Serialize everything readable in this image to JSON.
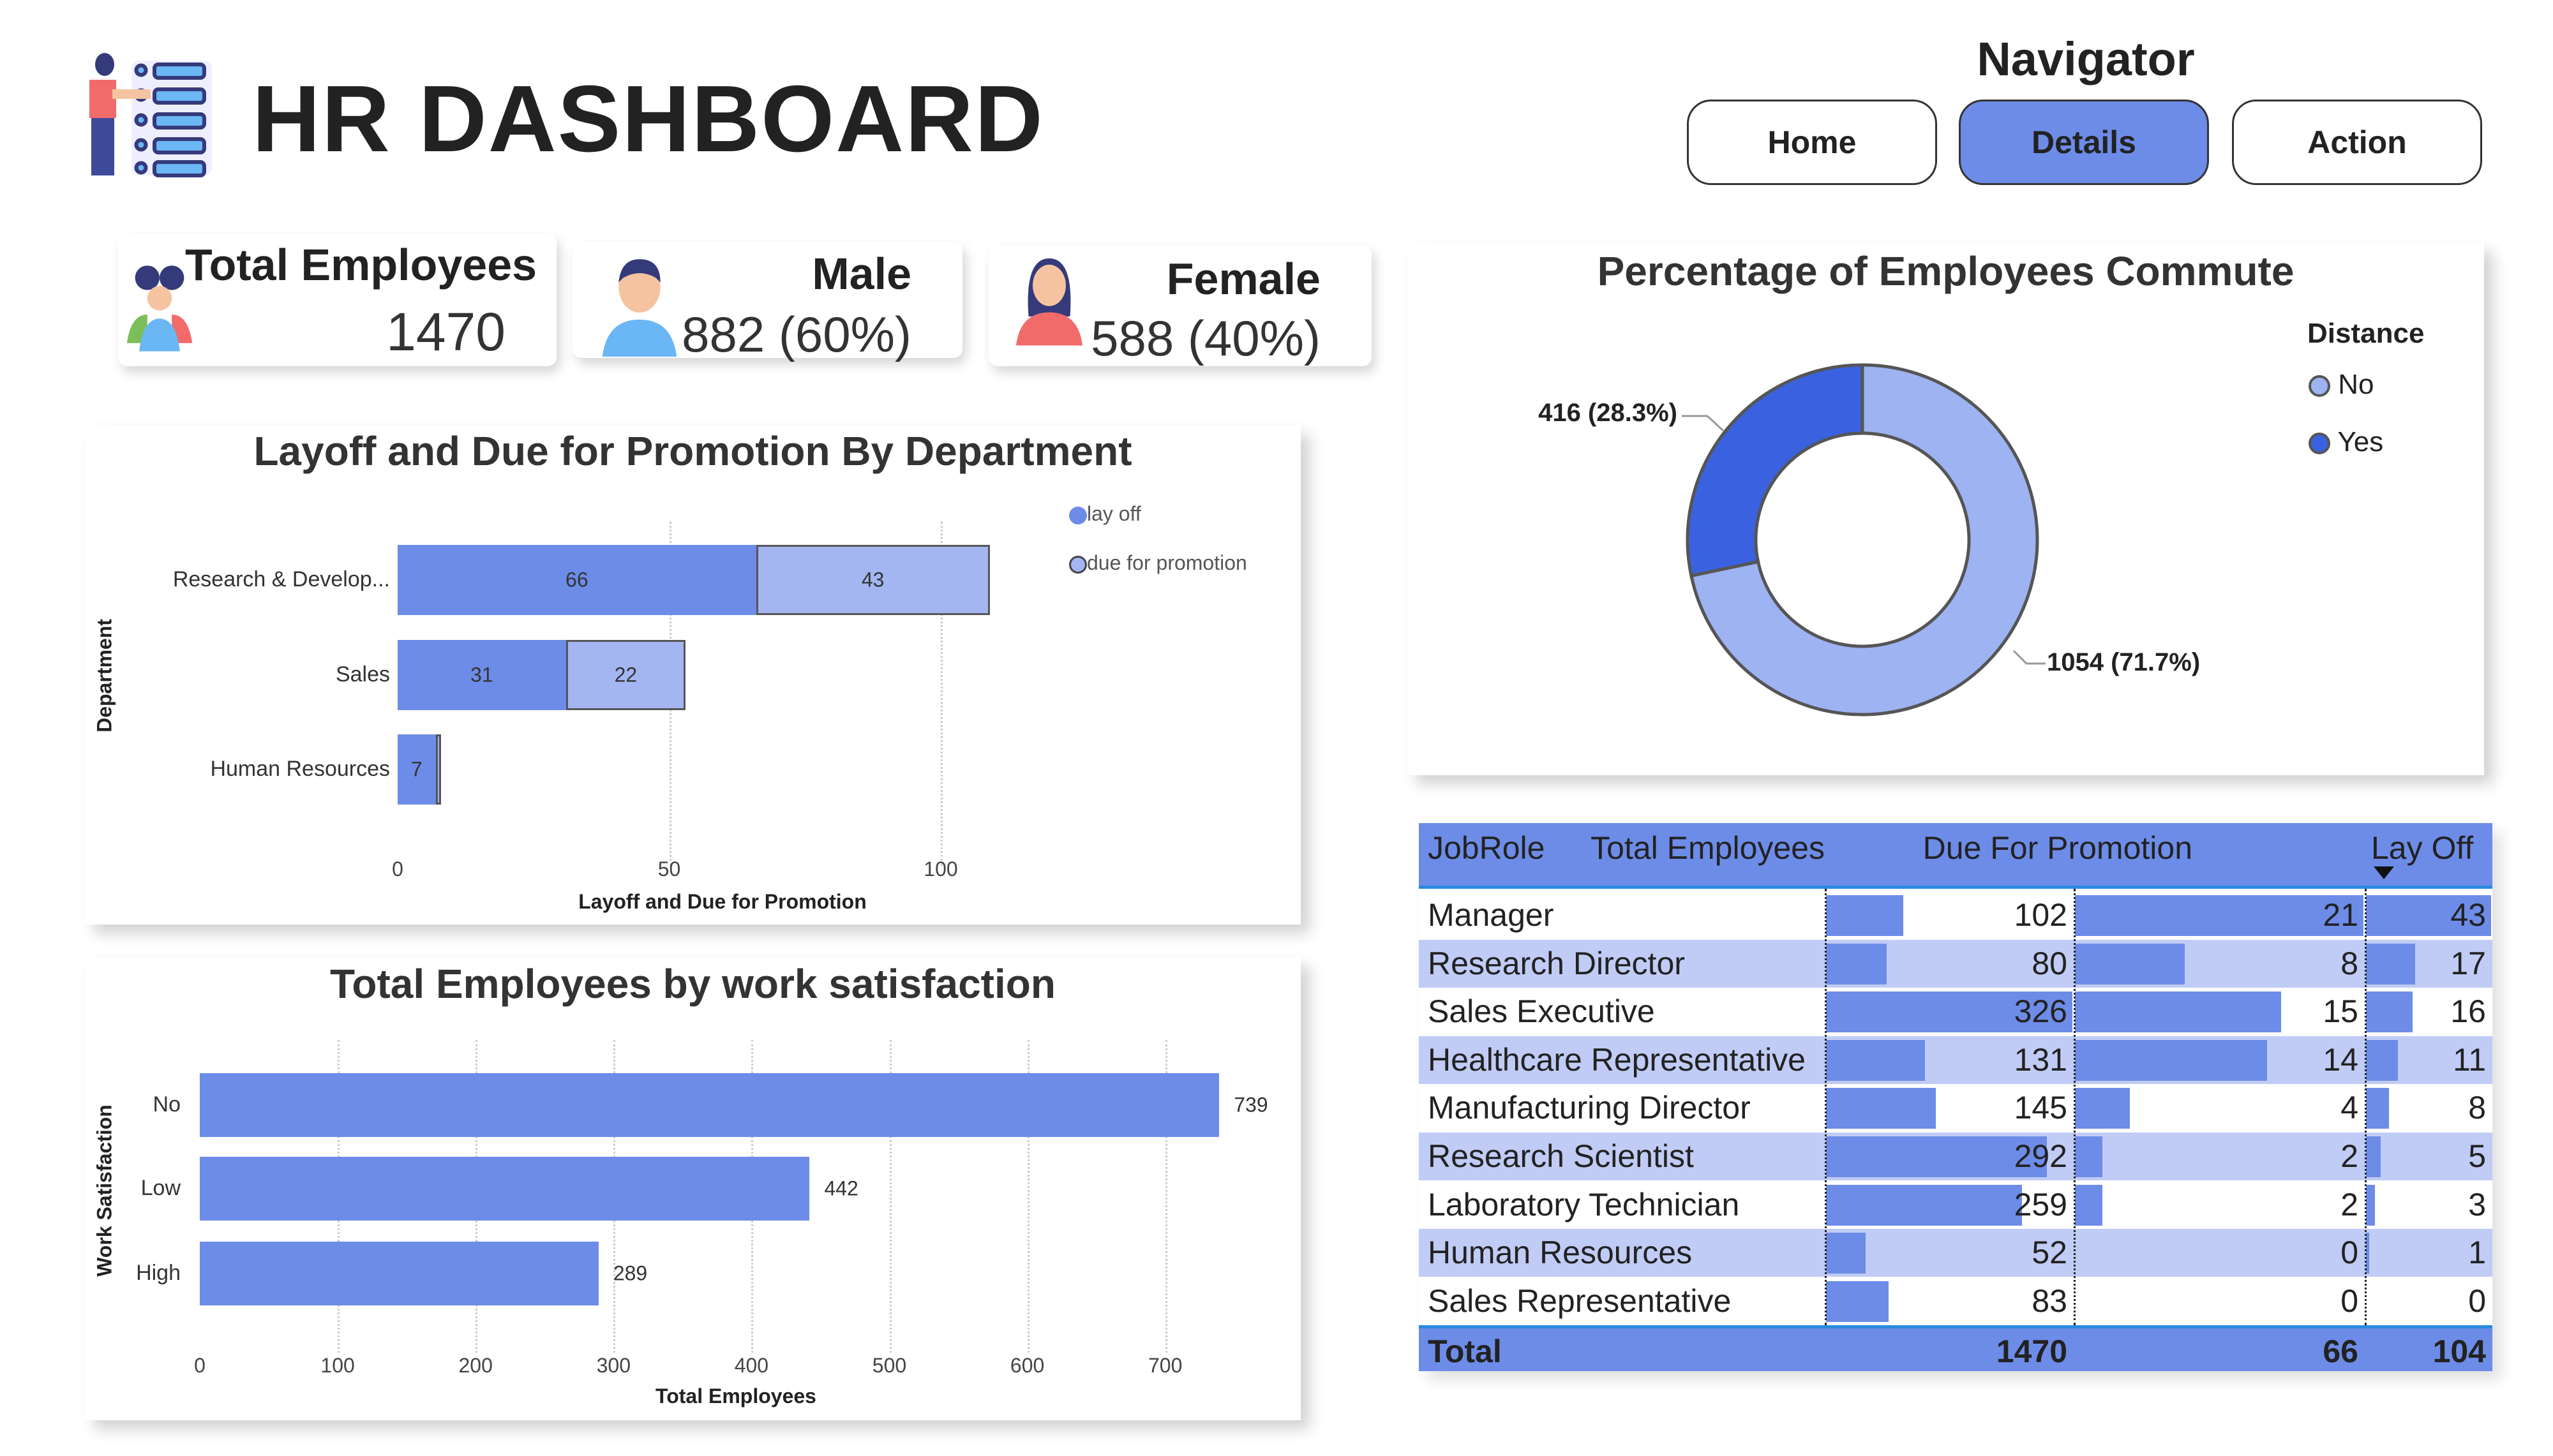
{
  "header": {
    "title": "HR DASHBOARD",
    "logo_icon": "employee-list-icon"
  },
  "navigator": {
    "label": "Navigator",
    "buttons": [
      {
        "label": "Home",
        "active": false
      },
      {
        "label": "Details",
        "active": true
      },
      {
        "label": "Action",
        "active": false
      }
    ]
  },
  "kpis": {
    "total": {
      "label": "Total Employees",
      "value": "1470",
      "icon": "group-people-icon"
    },
    "male": {
      "label": "Male",
      "value": "882 (60%)",
      "icon": "male-avatar-icon"
    },
    "female": {
      "label": "Female",
      "value": "588 (40%)",
      "icon": "female-avatar-icon"
    }
  },
  "colors": {
    "primary": "#6D8CE8",
    "light": "#A3B6F2",
    "dark": "#3A62E0",
    "row_alt": "#C0CCF5"
  },
  "chart_data": [
    {
      "type": "bar",
      "orientation": "horizontal",
      "stacked": true,
      "title": "Layoff and Due for Promotion By Department",
      "xlabel": "Layoff and Due for Promotion",
      "ylabel": "Department",
      "categories": [
        "Research & Develop...",
        "Sales",
        "Human Resources"
      ],
      "series": [
        {
          "name": "lay off",
          "values": [
            66,
            31,
            7
          ]
        },
        {
          "name": "due for promotion",
          "values": [
            43,
            22,
            1
          ]
        }
      ],
      "xticks": [
        0,
        50,
        100
      ],
      "xlim": [
        0,
        110
      ],
      "grid": true,
      "legend": "top-right"
    },
    {
      "type": "bar",
      "orientation": "horizontal",
      "title": "Total Employees by work satisfaction",
      "xlabel": "Total Employees",
      "ylabel": "Work Satisfaction",
      "categories": [
        "No",
        "Low",
        "High"
      ],
      "values": [
        739,
        442,
        289
      ],
      "xticks": [
        0,
        100,
        200,
        300,
        400,
        500,
        600,
        700
      ],
      "xlim": [
        0,
        760
      ],
      "grid": true
    },
    {
      "type": "pie",
      "donut": true,
      "title": "Percentage of Employees Commute",
      "legend_title": "Distance",
      "legend": "right",
      "categories": [
        "No",
        "Yes"
      ],
      "values": [
        1054,
        416
      ],
      "labels": [
        "1054 (71.7%)",
        "416 (28.3%)"
      ],
      "colors": [
        "#9DB3F2",
        "#3A62E0"
      ]
    }
  ],
  "table": {
    "columns": [
      "JobRole",
      "Total Employees",
      "Due For Promotion",
      "Lay Off"
    ],
    "sort_column": "Lay Off",
    "sort": "descending",
    "rows": [
      [
        "Manager",
        102,
        21,
        43
      ],
      [
        "Research Director",
        80,
        8,
        17
      ],
      [
        "Sales Executive",
        326,
        15,
        16
      ],
      [
        "Healthcare Representative",
        131,
        14,
        11
      ],
      [
        "Manufacturing Director",
        145,
        4,
        8
      ],
      [
        "Research Scientist",
        292,
        2,
        5
      ],
      [
        "Laboratory Technician",
        259,
        2,
        3
      ],
      [
        "Human Resources",
        52,
        0,
        1
      ],
      [
        "Sales Representative",
        83,
        0,
        0
      ]
    ],
    "total": [
      "Total",
      1470,
      66,
      104
    ]
  }
}
